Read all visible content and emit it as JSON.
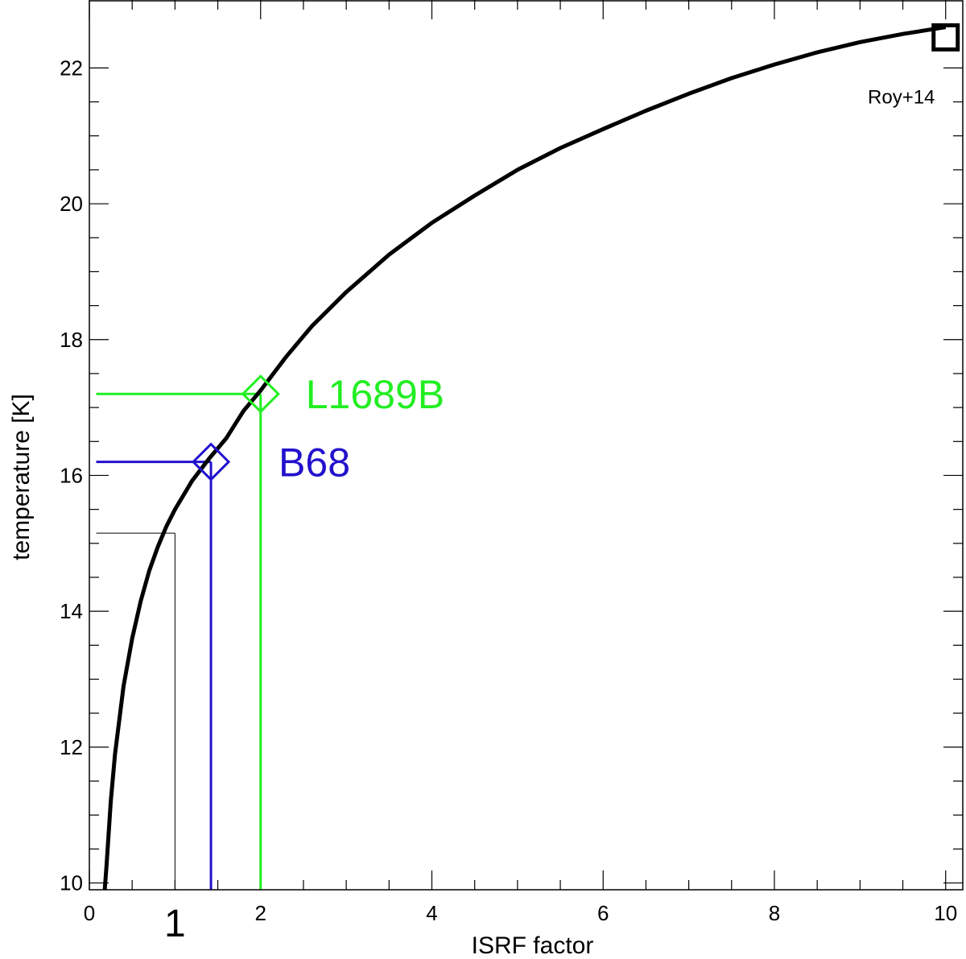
{
  "chart_data": {
    "type": "line",
    "xlabel": "ISRF factor",
    "ylabel": "temperature [K]",
    "xlim": [
      0,
      10.2
    ],
    "ylim": [
      9.9,
      23.0
    ],
    "x_ticks": [
      0,
      2,
      4,
      6,
      8,
      10
    ],
    "x_tick_labels": [
      "0",
      "2",
      "4",
      "6",
      "8",
      "10"
    ],
    "y_ticks": [
      10,
      12,
      14,
      16,
      18,
      20,
      22
    ],
    "y_tick_labels": [
      "10",
      "12",
      "14",
      "16",
      "18",
      "20",
      "22"
    ],
    "curve": {
      "color": "#000000",
      "x": [
        0.18,
        0.2,
        0.25,
        0.3,
        0.4,
        0.5,
        0.6,
        0.7,
        0.8,
        0.9,
        1.0,
        1.2,
        1.4,
        1.6,
        1.8,
        2.0,
        2.3,
        2.6,
        3.0,
        3.5,
        4.0,
        4.5,
        5.0,
        5.5,
        6.0,
        6.5,
        7.0,
        7.5,
        8.0,
        8.5,
        9.0,
        9.5,
        10.0
      ],
      "y": [
        9.9,
        10.25,
        11.2,
        11.9,
        12.9,
        13.6,
        14.15,
        14.6,
        14.95,
        15.25,
        15.5,
        15.92,
        16.25,
        16.55,
        16.95,
        17.25,
        17.75,
        18.2,
        18.7,
        19.25,
        19.72,
        20.12,
        20.5,
        20.82,
        21.1,
        21.37,
        21.62,
        21.85,
        22.05,
        22.23,
        22.38,
        22.5,
        22.6
      ]
    },
    "markers": [
      {
        "name": "L1689B",
        "x": 2.0,
        "y": 17.2,
        "color": "#22ee22",
        "shape": "diamond"
      },
      {
        "name": "B68",
        "x": 1.42,
        "y": 16.2,
        "color": "#2211cc",
        "shape": "diamond"
      },
      {
        "name": "Roy+14",
        "x": 10.0,
        "y": 22.45,
        "color": "#000000",
        "shape": "square"
      }
    ],
    "reference": {
      "label": "1",
      "x": 1.0,
      "y": 15.15,
      "color": "#000000"
    }
  }
}
